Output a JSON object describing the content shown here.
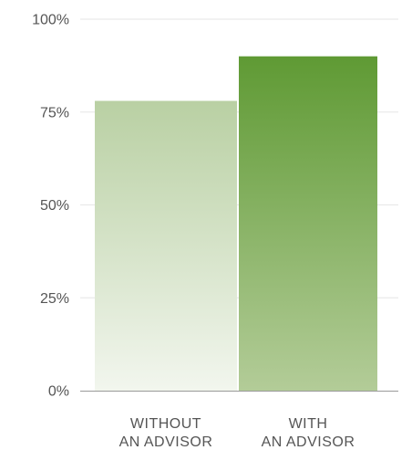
{
  "chart_data": {
    "type": "bar",
    "categories": [
      [
        "WITHOUT",
        "AN ADVISOR"
      ],
      [
        "WITH",
        "AN ADVISOR"
      ]
    ],
    "values": [
      78,
      90
    ],
    "ylim": [
      0,
      100
    ],
    "yticks": [
      "0%",
      "25%",
      "50%",
      "75%",
      "100%"
    ],
    "ytick_values": [
      0,
      25,
      50,
      75,
      100
    ],
    "grid": true,
    "title": "",
    "xlabel": "",
    "ylabel": ""
  },
  "colors": {
    "bar1_top": "#b9d0a3",
    "bar1_bottom": "#f2f6ee",
    "bar2_top": "#5f9a34",
    "bar2_bottom": "#b3cc98",
    "grid": "#e6e6e6",
    "axis": "#9a9a9a",
    "text": "#555555"
  }
}
